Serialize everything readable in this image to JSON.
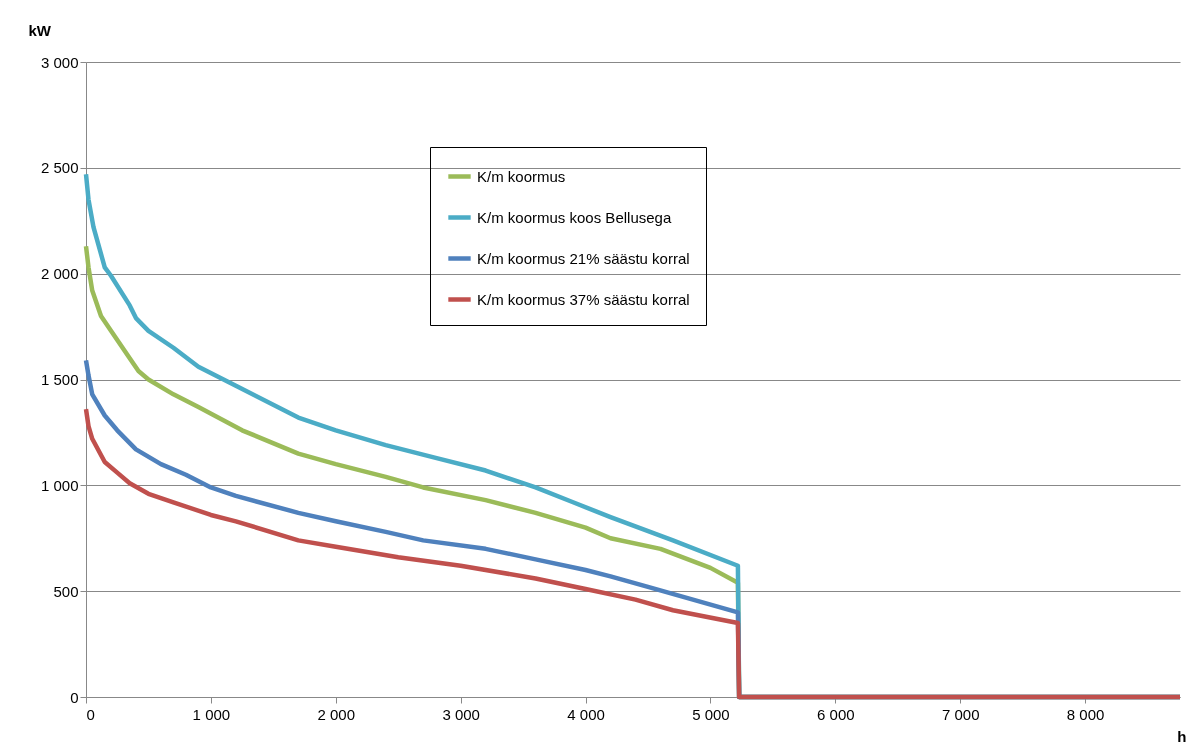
{
  "chart_data": {
    "type": "line",
    "xlabel": "h",
    "ylabel": "kW",
    "xlim": [
      0,
      8760
    ],
    "ylim": [
      0,
      3000
    ],
    "xticks": [
      0,
      {
        "value": 1000,
        "label": "1 000"
      },
      {
        "value": 2000,
        "label": "2 000"
      },
      {
        "value": 3000,
        "label": "3 000"
      },
      {
        "value": 4000,
        "label": "4 000"
      },
      {
        "value": 5000,
        "label": "5 000"
      },
      {
        "value": 6000,
        "label": "6 000"
      },
      {
        "value": 7000,
        "label": "7 000"
      },
      {
        "value": 8000,
        "label": "8 000"
      }
    ],
    "yticks": [
      0,
      500,
      {
        "value": 1000,
        "label": "1 000"
      },
      {
        "value": 1500,
        "label": "1 500"
      },
      {
        "value": 2000,
        "label": "2 000"
      },
      {
        "value": 2500,
        "label": "2 500"
      },
      {
        "value": 3000,
        "label": "3 000"
      }
    ],
    "grid": "y",
    "legend": "top",
    "marker": "none",
    "line_style": "solid",
    "series": [
      {
        "name": "K/m koormus",
        "color": "#9bbb59",
        "x": [
          0,
          20,
          50,
          120,
          200,
          350,
          420,
          500,
          700,
          900,
          1250,
          1700,
          2000,
          2400,
          2700,
          3200,
          3600,
          4000,
          4200,
          4600,
          5000,
          5220,
          5230,
          8760
        ],
        "values": [
          2130,
          2030,
          1920,
          1800,
          1730,
          1600,
          1540,
          1500,
          1430,
          1370,
          1260,
          1150,
          1100,
          1040,
          990,
          930,
          870,
          800,
          750,
          700,
          610,
          540,
          0,
          0
        ]
      },
      {
        "name": "K/m koormus koos Bellusega",
        "color": "#4bacc6",
        "x": [
          0,
          20,
          60,
          150,
          200,
          350,
          400,
          500,
          700,
          900,
          1200,
          1700,
          2000,
          2400,
          2800,
          3200,
          3600,
          3900,
          4200,
          4700,
          5220,
          5230,
          8760
        ],
        "values": [
          2470,
          2350,
          2220,
          2030,
          1990,
          1850,
          1790,
          1730,
          1650,
          1560,
          1470,
          1320,
          1260,
          1190,
          1130,
          1070,
          990,
          920,
          850,
          740,
          620,
          0,
          0
        ]
      },
      {
        "name": "K/m koormus 21% säästu korral",
        "color": "#4f81bd",
        "x": [
          0,
          20,
          50,
          150,
          250,
          400,
          600,
          800,
          1000,
          1200,
          1700,
          2000,
          2400,
          2700,
          3200,
          3600,
          4000,
          4200,
          4500,
          5220,
          5230,
          8760
        ],
        "values": [
          1590,
          1520,
          1430,
          1330,
          1260,
          1170,
          1100,
          1050,
          990,
          950,
          870,
          830,
          780,
          740,
          700,
          650,
          600,
          570,
          520,
          400,
          0,
          0
        ]
      },
      {
        "name": "K/m koormus 37% säästu korral",
        "color": "#c0504d",
        "x": [
          0,
          20,
          50,
          150,
          250,
          350,
          500,
          700,
          1000,
          1200,
          1700,
          2000,
          2500,
          3000,
          3600,
          4000,
          4400,
          4700,
          5220,
          5230,
          8760
        ],
        "values": [
          1360,
          1280,
          1220,
          1110,
          1060,
          1010,
          960,
          920,
          860,
          830,
          740,
          710,
          660,
          620,
          560,
          510,
          460,
          410,
          350,
          0,
          0
        ]
      }
    ]
  }
}
